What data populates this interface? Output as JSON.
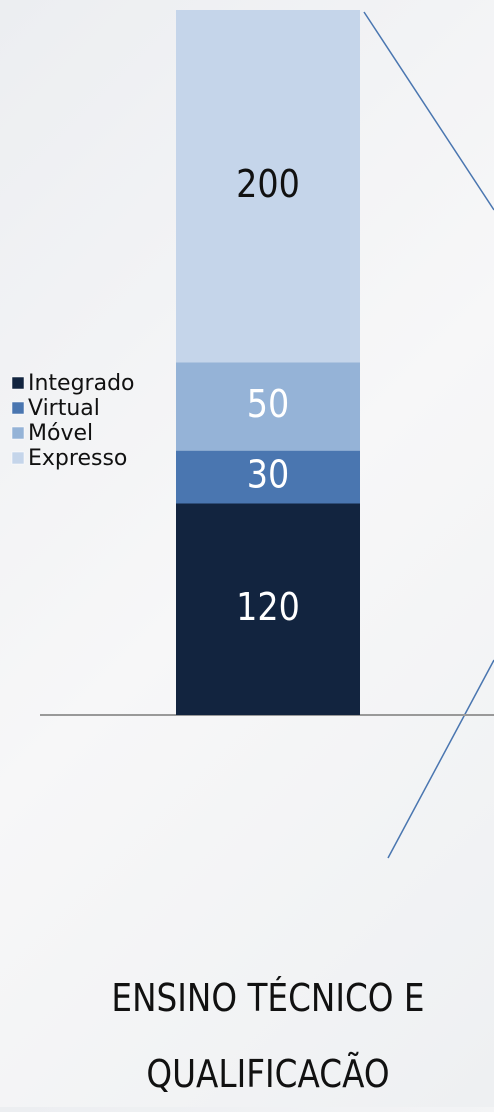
{
  "chart_data": {
    "type": "stacked-bar",
    "categories": [
      "ENSINO TÉCNICO E QUALIFICACÃO"
    ],
    "series": [
      {
        "name": "Integrado",
        "color": "#12243f",
        "values": [
          120
        ]
      },
      {
        "name": "Virtual",
        "color": "#4a76b0",
        "values": [
          30
        ]
      },
      {
        "name": "Móvel",
        "color": "#95b3d7",
        "values": [
          50
        ]
      },
      {
        "name": "Expresso",
        "color": "#c5d5ea",
        "values": [
          200
        ]
      }
    ],
    "ylim": [
      0,
      400
    ]
  }
}
